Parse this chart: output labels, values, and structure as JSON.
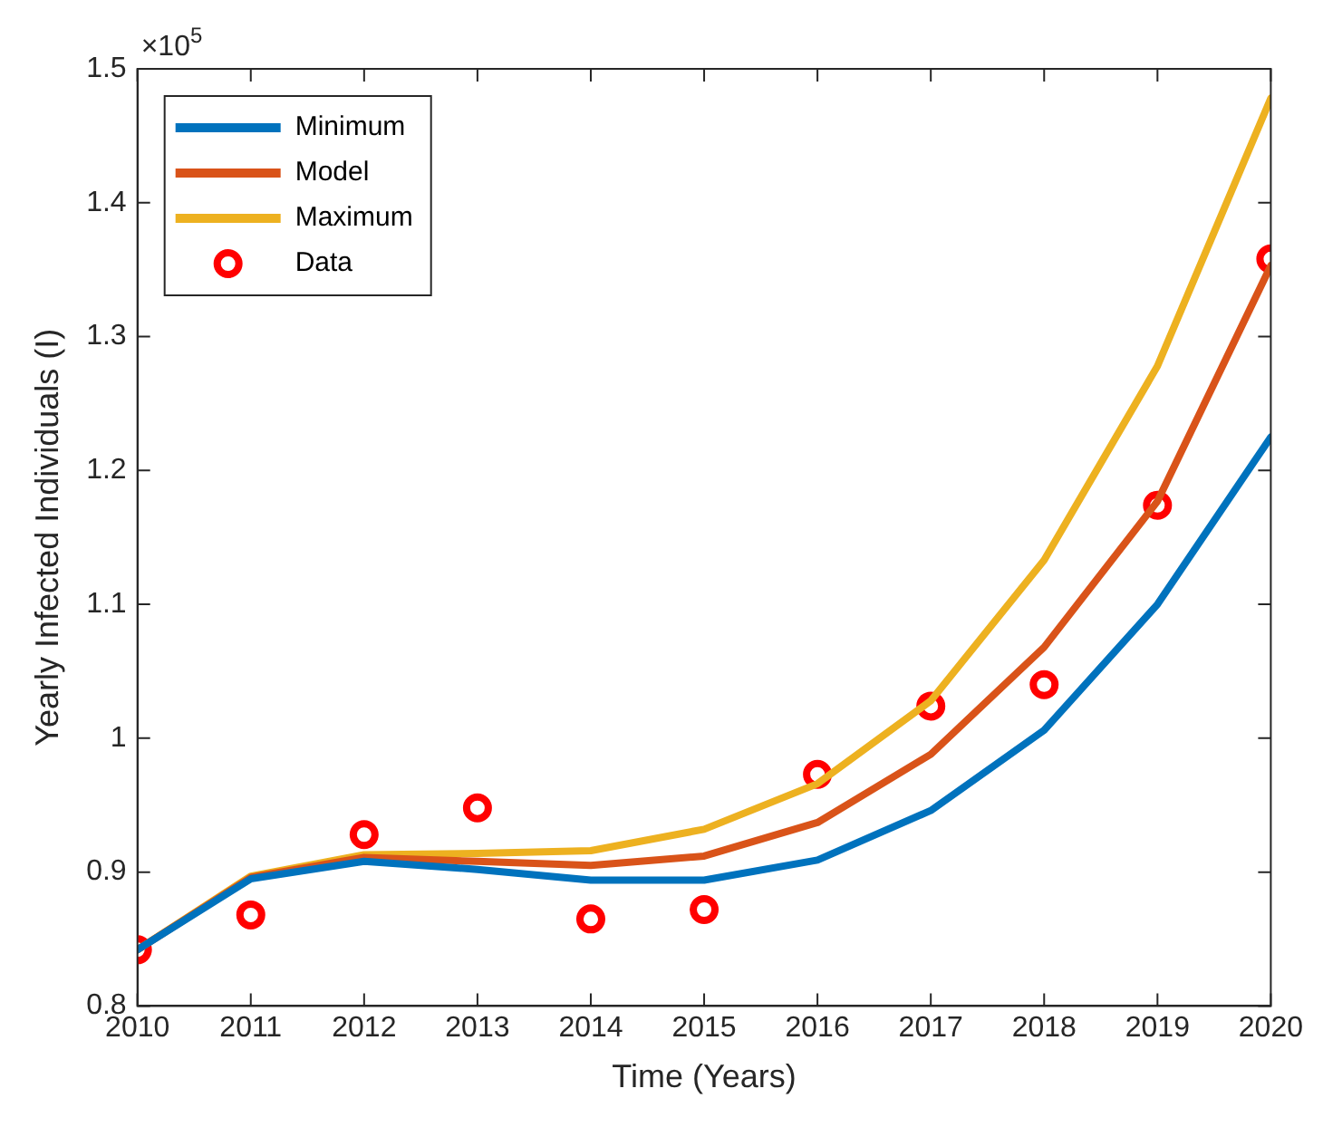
{
  "chart_data": {
    "type": "line",
    "xlabel": "Time (Years)",
    "ylabel": "Yearly Infected Individuals (I)",
    "annotations": [
      "×10$^{5}$"
    ],
    "x": [
      2010,
      2011,
      2012,
      2013,
      2014,
      2015,
      2016,
      2017,
      2018,
      2019,
      2020
    ],
    "series": [
      {
        "name": "Minimum",
        "color": "#0072bd",
        "values": [
          0.842,
          0.895,
          0.908,
          0.902,
          0.894,
          0.894,
          0.909,
          0.946,
          1.006,
          1.1,
          1.225
        ]
      },
      {
        "name": "Model",
        "color": "#d95319",
        "values": [
          0.842,
          0.896,
          0.911,
          0.908,
          0.905,
          0.912,
          0.937,
          0.988,
          1.068,
          1.177,
          1.353
        ]
      },
      {
        "name": "Maximum",
        "color": "#edb120",
        "values": [
          0.842,
          0.897,
          0.913,
          0.914,
          0.916,
          0.932,
          0.966,
          1.028,
          1.133,
          1.278,
          1.478
        ]
      },
      {
        "name": "Data",
        "type": "scatter",
        "marker": "circle",
        "color": "#ff0000",
        "values": [
          0.842,
          0.868,
          0.928,
          0.948,
          0.865,
          0.872,
          0.973,
          1.024,
          1.04,
          1.174,
          1.358
        ]
      }
    ],
    "marker": "none",
    "line_style": "solid",
    "xlim": [
      2010,
      2020
    ],
    "xticks": [
      2010,
      2011,
      2012,
      2013,
      2014,
      2015,
      2016,
      2017,
      2018,
      2019,
      2020
    ],
    "ylim": [
      0.8,
      1.5
    ],
    "yticks": [
      0.8,
      0.9,
      {
        "value": 1,
        "label": "1"
      },
      1.1,
      1.2,
      1.3,
      1.4,
      1.5
    ],
    "grid": false,
    "legend": "top left"
  }
}
